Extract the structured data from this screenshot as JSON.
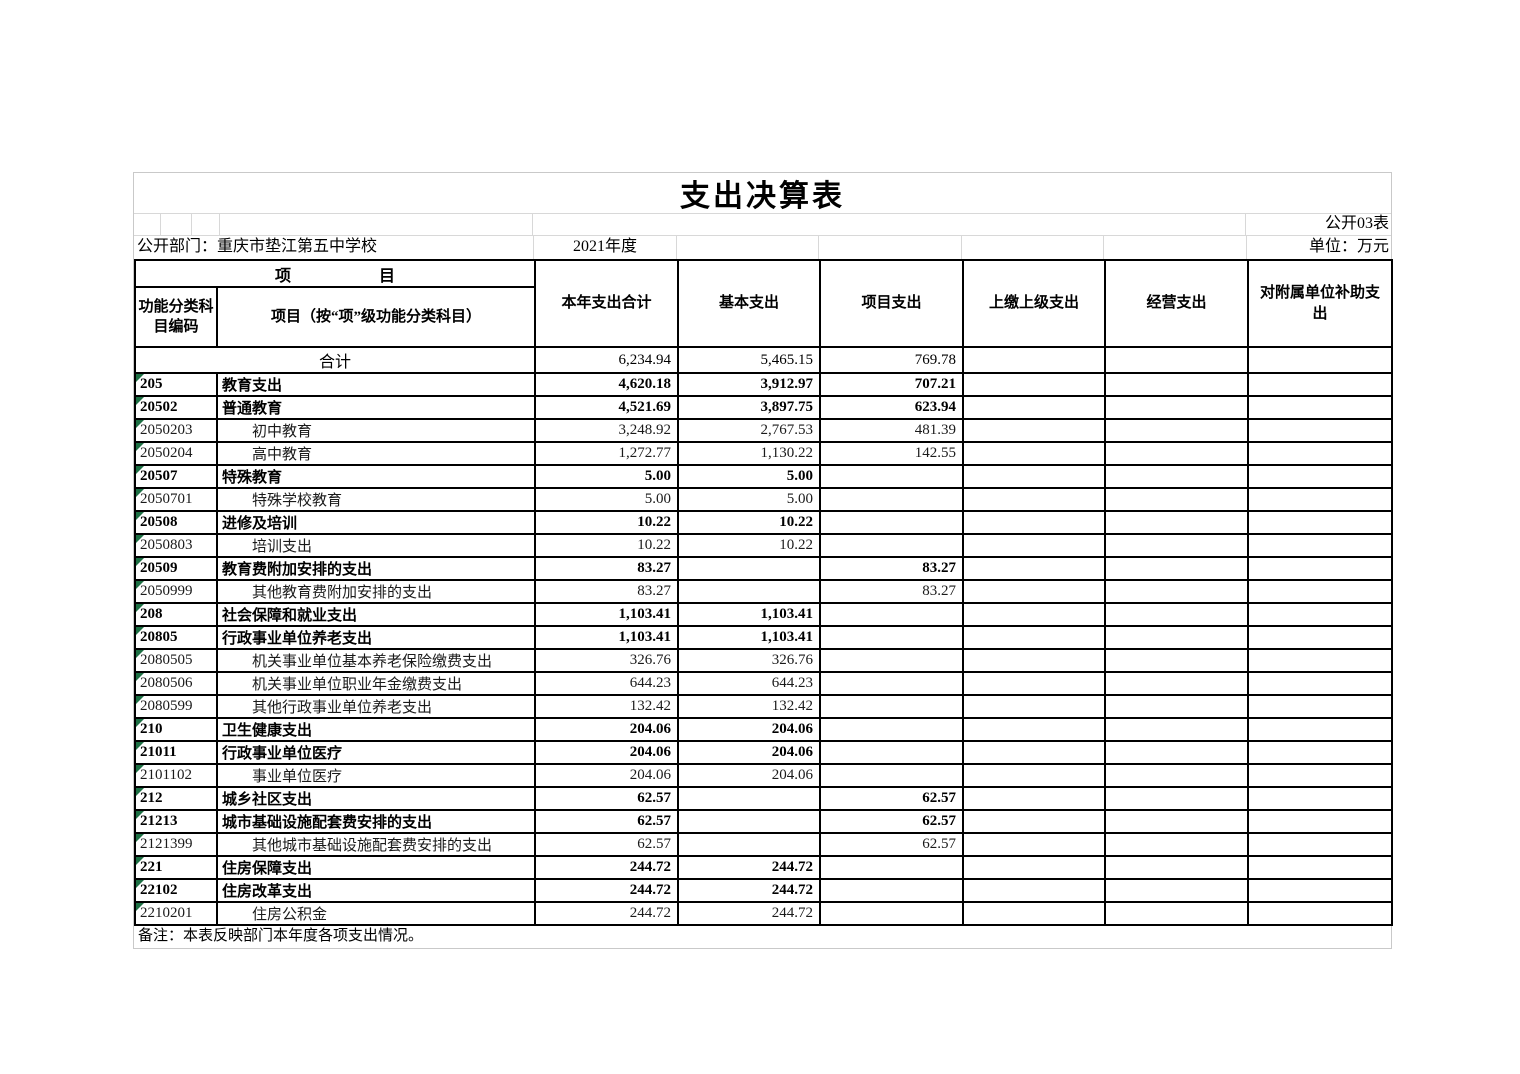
{
  "title": "支出决算表",
  "meta": {
    "sheet_label": "公开03表",
    "department": "公开部门：重庆市垫江第五中学校",
    "year": "2021年度",
    "unit": "单位：万元"
  },
  "table": {
    "header": {
      "group_left": "项",
      "group_right": "目",
      "col_code": "功能分类科目编码",
      "col_item": "项目（按“项”级功能分类科目）",
      "cols": [
        "本年支出合计",
        "基本支出",
        "项目支出",
        "上缴上级支出",
        "经营支出",
        "对附属单位补助支出"
      ]
    },
    "total_row": {
      "label": "合计",
      "values": [
        "6,234.94",
        "5,465.15",
        "769.78",
        "",
        "",
        ""
      ]
    },
    "rows": [
      {
        "code": "205",
        "name": "教育支出",
        "bold": true,
        "values": [
          "4,620.18",
          "3,912.97",
          "707.21",
          "",
          "",
          ""
        ]
      },
      {
        "code": "20502",
        "name": "普通教育",
        "bold": true,
        "values": [
          "4,521.69",
          "3,897.75",
          "623.94",
          "",
          "",
          ""
        ]
      },
      {
        "code": "2050203",
        "name": "初中教育",
        "bold": false,
        "values": [
          "3,248.92",
          "2,767.53",
          "481.39",
          "",
          "",
          ""
        ]
      },
      {
        "code": "2050204",
        "name": "高中教育",
        "bold": false,
        "values": [
          "1,272.77",
          "1,130.22",
          "142.55",
          "",
          "",
          ""
        ]
      },
      {
        "code": "20507",
        "name": "特殊教育",
        "bold": true,
        "values": [
          "5.00",
          "5.00",
          "",
          "",
          "",
          ""
        ]
      },
      {
        "code": "2050701",
        "name": "特殊学校教育",
        "bold": false,
        "values": [
          "5.00",
          "5.00",
          "",
          "",
          "",
          ""
        ]
      },
      {
        "code": "20508",
        "name": "进修及培训",
        "bold": true,
        "values": [
          "10.22",
          "10.22",
          "",
          "",
          "",
          ""
        ]
      },
      {
        "code": "2050803",
        "name": "培训支出",
        "bold": false,
        "values": [
          "10.22",
          "10.22",
          "",
          "",
          "",
          ""
        ]
      },
      {
        "code": "20509",
        "name": "教育费附加安排的支出",
        "bold": true,
        "values": [
          "83.27",
          "",
          "83.27",
          "",
          "",
          ""
        ]
      },
      {
        "code": "2050999",
        "name": "其他教育费附加安排的支出",
        "bold": false,
        "values": [
          "83.27",
          "",
          "83.27",
          "",
          "",
          ""
        ]
      },
      {
        "code": "208",
        "name": "社会保障和就业支出",
        "bold": true,
        "values": [
          "1,103.41",
          "1,103.41",
          "",
          "",
          "",
          ""
        ]
      },
      {
        "code": "20805",
        "name": "行政事业单位养老支出",
        "bold": true,
        "values": [
          "1,103.41",
          "1,103.41",
          "",
          "",
          "",
          ""
        ]
      },
      {
        "code": "2080505",
        "name": "机关事业单位基本养老保险缴费支出",
        "bold": false,
        "values": [
          "326.76",
          "326.76",
          "",
          "",
          "",
          ""
        ]
      },
      {
        "code": "2080506",
        "name": "机关事业单位职业年金缴费支出",
        "bold": false,
        "values": [
          "644.23",
          "644.23",
          "",
          "",
          "",
          ""
        ]
      },
      {
        "code": "2080599",
        "name": "其他行政事业单位养老支出",
        "bold": false,
        "values": [
          "132.42",
          "132.42",
          "",
          "",
          "",
          ""
        ]
      },
      {
        "code": "210",
        "name": "卫生健康支出",
        "bold": true,
        "values": [
          "204.06",
          "204.06",
          "",
          "",
          "",
          ""
        ]
      },
      {
        "code": "21011",
        "name": "行政事业单位医疗",
        "bold": true,
        "values": [
          "204.06",
          "204.06",
          "",
          "",
          "",
          ""
        ]
      },
      {
        "code": "2101102",
        "name": "事业单位医疗",
        "bold": false,
        "values": [
          "204.06",
          "204.06",
          "",
          "",
          "",
          ""
        ]
      },
      {
        "code": "212",
        "name": "城乡社区支出",
        "bold": true,
        "values": [
          "62.57",
          "",
          "62.57",
          "",
          "",
          ""
        ]
      },
      {
        "code": "21213",
        "name": "城市基础设施配套费安排的支出",
        "bold": true,
        "values": [
          "62.57",
          "",
          "62.57",
          "",
          "",
          ""
        ]
      },
      {
        "code": "2121399",
        "name": "其他城市基础设施配套费安排的支出",
        "bold": false,
        "values": [
          "62.57",
          "",
          "62.57",
          "",
          "",
          ""
        ]
      },
      {
        "code": "221",
        "name": "住房保障支出",
        "bold": true,
        "values": [
          "244.72",
          "244.72",
          "",
          "",
          "",
          ""
        ]
      },
      {
        "code": "22102",
        "name": "住房改革支出",
        "bold": true,
        "values": [
          "244.72",
          "244.72",
          "",
          "",
          "",
          ""
        ]
      },
      {
        "code": "2210201",
        "name": "住房公积金",
        "bold": false,
        "values": [
          "244.72",
          "244.72",
          "",
          "",
          "",
          ""
        ]
      }
    ]
  },
  "footnote": "备注：本表反映部门本年度各项支出情况。",
  "colors": {
    "table_grid": "#000000",
    "light_grid": "#d8d8d8",
    "indicator_green": "#1d7044"
  }
}
